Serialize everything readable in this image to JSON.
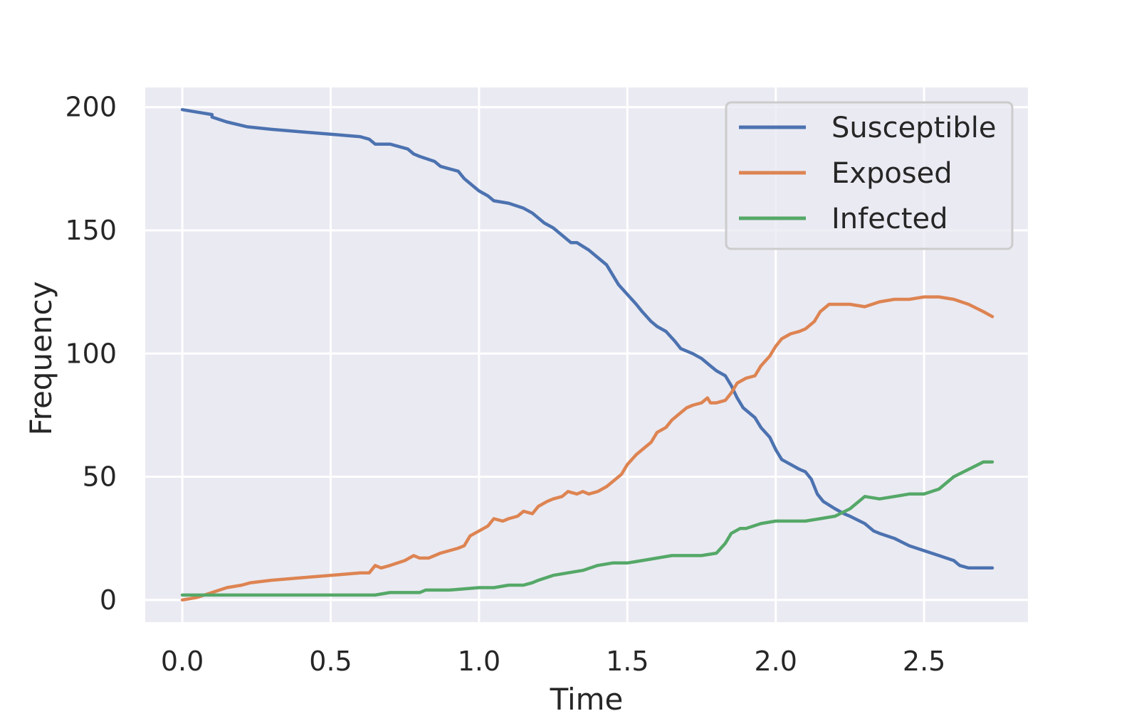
{
  "chart_data": {
    "type": "line",
    "title": "",
    "xlabel": "Time",
    "ylabel": "Frequency",
    "xlim": [
      -0.125,
      2.85
    ],
    "ylim": [
      -9,
      208
    ],
    "xticks": [
      0.0,
      0.5,
      1.0,
      1.5,
      2.0,
      2.5
    ],
    "xtick_labels": [
      "0.0",
      "0.5",
      "1.0",
      "1.5",
      "2.0",
      "2.5"
    ],
    "yticks": [
      0,
      50,
      100,
      150,
      200
    ],
    "ytick_labels": [
      "0",
      "50",
      "100",
      "150",
      "200"
    ],
    "grid": true,
    "legend_position": "top-right",
    "background": "#EAEAF2",
    "series": [
      {
        "name": "Susceptible",
        "color": "#4C72B0",
        "x": [
          0.0,
          0.05,
          0.1,
          0.1,
          0.15,
          0.22,
          0.3,
          0.4,
          0.5,
          0.6,
          0.63,
          0.65,
          0.7,
          0.76,
          0.78,
          0.8,
          0.85,
          0.87,
          0.9,
          0.93,
          0.95,
          0.98,
          1.0,
          1.03,
          1.05,
          1.1,
          1.15,
          1.18,
          1.2,
          1.22,
          1.25,
          1.28,
          1.31,
          1.33,
          1.37,
          1.4,
          1.43,
          1.45,
          1.47,
          1.5,
          1.53,
          1.55,
          1.58,
          1.6,
          1.63,
          1.66,
          1.68,
          1.72,
          1.75,
          1.78,
          1.8,
          1.83,
          1.85,
          1.87,
          1.89,
          1.93,
          1.95,
          1.98,
          2.0,
          2.02,
          2.05,
          2.08,
          2.1,
          2.12,
          2.14,
          2.16,
          2.2,
          2.23,
          2.25,
          2.3,
          2.33,
          2.35,
          2.4,
          2.45,
          2.5,
          2.55,
          2.6,
          2.62,
          2.65,
          2.73
        ],
        "y": [
          199,
          198,
          197,
          196,
          194,
          192,
          191,
          190,
          189,
          188,
          187,
          185,
          185,
          183,
          181,
          180,
          178,
          176,
          175,
          174,
          171,
          168,
          166,
          164,
          162,
          161,
          159,
          157,
          155,
          153,
          151,
          148,
          145,
          145,
          142,
          139,
          136,
          132,
          128,
          124,
          120,
          117,
          113,
          111,
          109,
          105,
          102,
          100,
          98,
          95,
          93,
          91,
          87,
          82,
          78,
          74,
          70,
          66,
          61,
          57,
          55,
          53,
          52,
          49,
          43,
          40,
          37,
          35,
          34,
          31,
          28,
          27,
          25,
          22,
          20,
          18,
          16,
          14,
          13,
          13
        ]
      },
      {
        "name": "Exposed",
        "color": "#DD8452",
        "x": [
          0.0,
          0.05,
          0.1,
          0.15,
          0.2,
          0.23,
          0.3,
          0.4,
          0.5,
          0.6,
          0.63,
          0.65,
          0.67,
          0.7,
          0.75,
          0.78,
          0.8,
          0.83,
          0.87,
          0.9,
          0.93,
          0.95,
          0.97,
          1.0,
          1.03,
          1.05,
          1.08,
          1.1,
          1.13,
          1.15,
          1.18,
          1.2,
          1.23,
          1.25,
          1.28,
          1.3,
          1.33,
          1.35,
          1.37,
          1.4,
          1.43,
          1.45,
          1.48,
          1.5,
          1.53,
          1.55,
          1.58,
          1.6,
          1.63,
          1.65,
          1.68,
          1.7,
          1.72,
          1.75,
          1.77,
          1.78,
          1.8,
          1.83,
          1.85,
          1.87,
          1.9,
          1.93,
          1.95,
          1.98,
          2.0,
          2.02,
          2.05,
          2.08,
          2.1,
          2.13,
          2.15,
          2.18,
          2.2,
          2.23,
          2.25,
          2.3,
          2.35,
          2.4,
          2.45,
          2.5,
          2.55,
          2.6,
          2.65,
          2.7,
          2.73
        ],
        "y": [
          0,
          1,
          3,
          5,
          6,
          7,
          8,
          9,
          10,
          11,
          11,
          14,
          13,
          14,
          16,
          18,
          17,
          17,
          19,
          20,
          21,
          22,
          26,
          28,
          30,
          33,
          32,
          33,
          34,
          36,
          35,
          38,
          40,
          41,
          42,
          44,
          43,
          44,
          43,
          44,
          46,
          48,
          51,
          55,
          59,
          61,
          64,
          68,
          70,
          73,
          76,
          78,
          79,
          80,
          82,
          80,
          80,
          81,
          84,
          88,
          90,
          91,
          95,
          99,
          103,
          106,
          108,
          109,
          110,
          113,
          117,
          120,
          120,
          120,
          120,
          119,
          121,
          122,
          122,
          123,
          123,
          122,
          120,
          117,
          115
        ]
      },
      {
        "name": "Infected",
        "color": "#55A868",
        "x": [
          0.0,
          0.1,
          0.2,
          0.3,
          0.4,
          0.5,
          0.6,
          0.65,
          0.7,
          0.8,
          0.82,
          0.9,
          1.0,
          1.05,
          1.1,
          1.15,
          1.18,
          1.2,
          1.25,
          1.3,
          1.35,
          1.4,
          1.45,
          1.5,
          1.55,
          1.6,
          1.65,
          1.7,
          1.75,
          1.8,
          1.83,
          1.85,
          1.88,
          1.9,
          1.95,
          2.0,
          2.05,
          2.1,
          2.15,
          2.2,
          2.25,
          2.3,
          2.35,
          2.4,
          2.45,
          2.5,
          2.55,
          2.6,
          2.65,
          2.7,
          2.73
        ],
        "y": [
          2,
          2,
          2,
          2,
          2,
          2,
          2,
          2,
          3,
          3,
          4,
          4,
          5,
          5,
          6,
          6,
          7,
          8,
          10,
          11,
          12,
          14,
          15,
          15,
          16,
          17,
          18,
          18,
          18,
          19,
          23,
          27,
          29,
          29,
          31,
          32,
          32,
          32,
          33,
          34,
          37,
          42,
          41,
          42,
          43,
          43,
          45,
          50,
          53,
          56,
          56
        ]
      }
    ]
  }
}
